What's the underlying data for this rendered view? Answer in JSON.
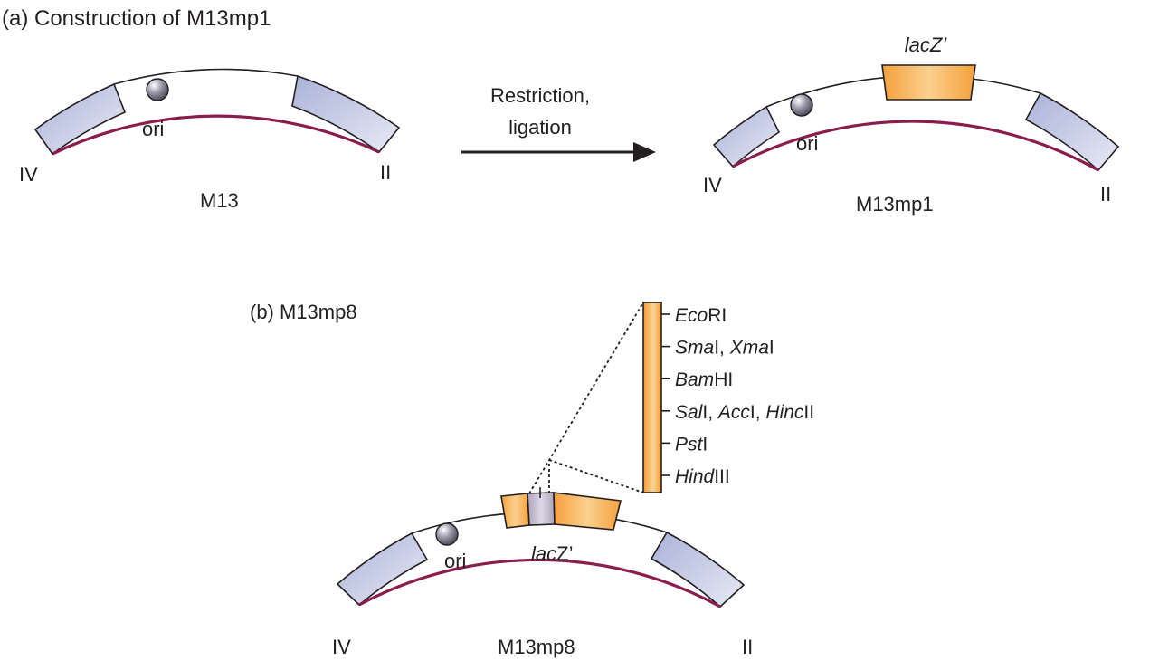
{
  "panel_a": {
    "title": "(a) Construction of M13mp1",
    "left": {
      "name": "M13",
      "ori": "ori",
      "gene_iv": "IV",
      "gene_ii": "II"
    },
    "step_line1": "Restriction,",
    "step_line2": "ligation",
    "right": {
      "name": "M13mp1",
      "ori": "ori",
      "gene_iv": "IV",
      "gene_ii": "II",
      "insert": "lacZ’"
    }
  },
  "panel_b": {
    "title": "(b) M13mp8",
    "name": "M13mp8",
    "ori": "ori",
    "gene_iv": "IV",
    "gene_ii": "II",
    "insert_italic": "lac",
    "insert_plain": "Z’",
    "sites": [
      [
        {
          "t": "Eco",
          "i": true
        },
        {
          "t": "RI",
          "i": false
        }
      ],
      [
        {
          "t": "Sma",
          "i": true
        },
        {
          "t": "I, ",
          "i": false
        },
        {
          "t": "Xma",
          "i": true
        },
        {
          "t": "I",
          "i": false
        }
      ],
      [
        {
          "t": "Bam",
          "i": true
        },
        {
          "t": "HI",
          "i": false
        }
      ],
      [
        {
          "t": "Sal",
          "i": true
        },
        {
          "t": "I, ",
          "i": false
        },
        {
          "t": "Acc",
          "i": true
        },
        {
          "t": "I, ",
          "i": false
        },
        {
          "t": "Hinc",
          "i": true
        },
        {
          "t": "II",
          "i": false
        }
      ],
      [
        {
          "t": "Pst",
          "i": true
        },
        {
          "t": "I",
          "i": false
        }
      ],
      [
        {
          "t": "Hind",
          "i": true
        },
        {
          "t": "III",
          "i": false
        }
      ]
    ]
  },
  "colors": {
    "backbone": "#8b1d4e",
    "gene_fill": "#c7cde6",
    "insert_fill": "#f5a947",
    "polylinker_fill": "#b9b3c8",
    "ink": "#231f20"
  }
}
